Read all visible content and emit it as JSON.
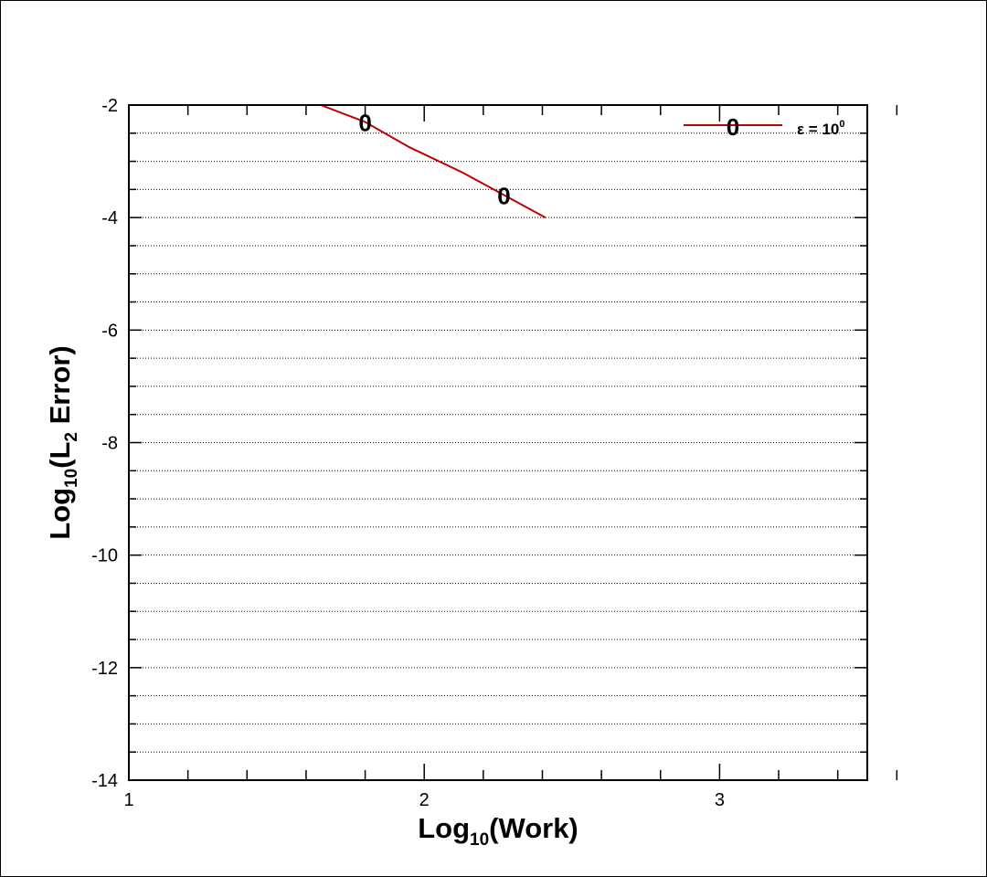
{
  "chart_data": {
    "type": "line",
    "xlabel": {
      "base": "Log",
      "sub": "10",
      "rest": "(Work)"
    },
    "ylabel": {
      "base": "Log",
      "sub": "10",
      "rest1": "(L",
      "sub2": "2",
      "rest2": " Error)"
    },
    "xlim": [
      1,
      3.5
    ],
    "ylim": [
      -14,
      -2
    ],
    "x_major_ticks": [
      1,
      2,
      3
    ],
    "x_minor_step": 0.2,
    "y_major_ticks": [
      -14,
      -12,
      -10,
      -8,
      -6,
      -4,
      -2
    ],
    "y_minor_step": 0.5,
    "grid": "horizontal dotted",
    "legend_position": "top-right",
    "series": [
      {
        "name": "ε = 10⁰",
        "legend": {
          "prefix": "ε = 10",
          "sup": "0"
        },
        "color": "#c00000",
        "marker_symbol": "0",
        "x": [
          1.65,
          1.8,
          1.95,
          2.13,
          2.27,
          2.41
        ],
        "y": [
          -2.0,
          -2.3,
          -2.75,
          -3.2,
          -3.6,
          -4.0
        ],
        "marker_x": [
          1.8,
          2.27
        ]
      }
    ]
  }
}
